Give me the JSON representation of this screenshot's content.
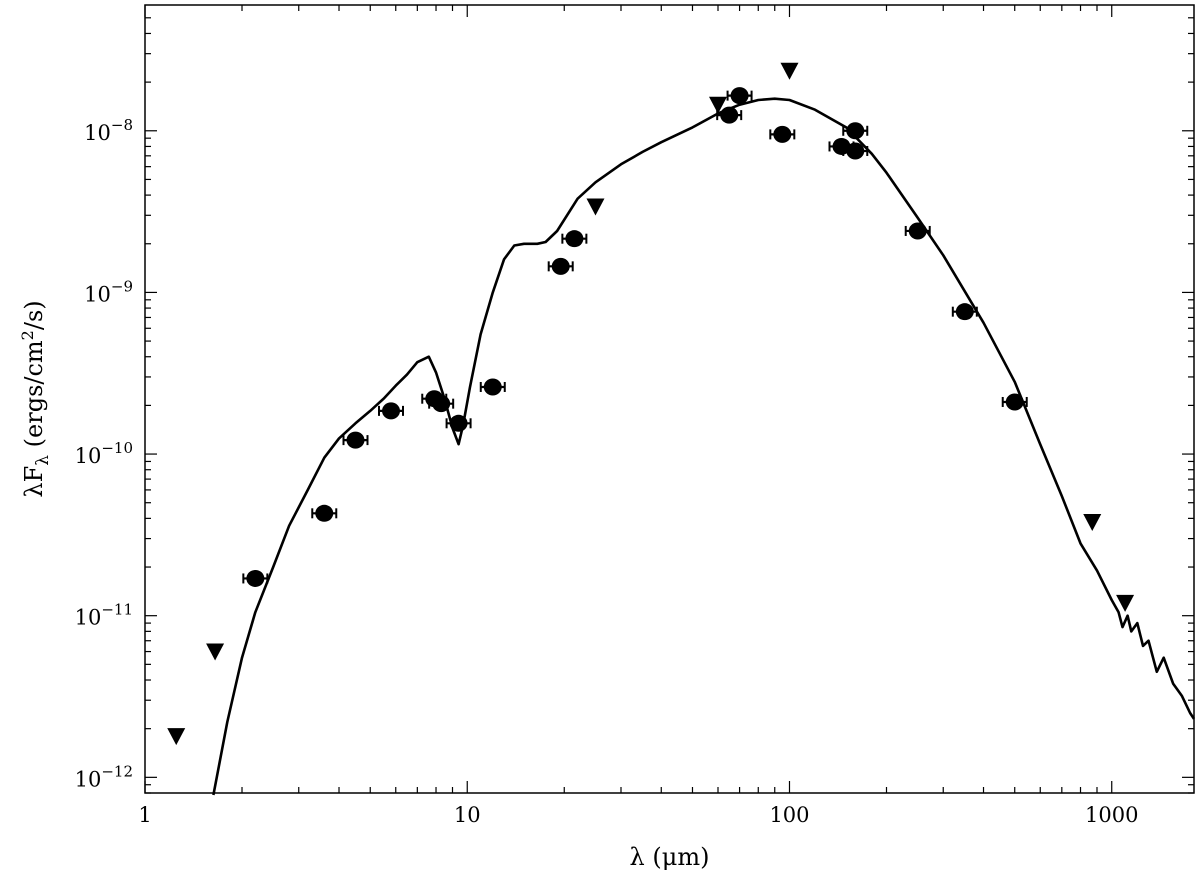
{
  "chart_data": {
    "type": "scatter",
    "xlabel": "λ (μm)",
    "ylabel_main": "λF",
    "ylabel_sub": "λ",
    "ylabel_units_pre": "(ergs/cm",
    "ylabel_units_sup": "2",
    "ylabel_units_post": "/s)",
    "x_scale": "log",
    "y_scale": "log",
    "xlim": [
      1,
      1800
    ],
    "ylim": [
      8e-13,
      6e-08
    ],
    "grid": false,
    "x_ticks": [
      {
        "value": 1,
        "label": "1"
      },
      {
        "value": 10,
        "label": "10"
      },
      {
        "value": 100,
        "label": "100"
      },
      {
        "value": 1000,
        "label": "1000"
      }
    ],
    "y_ticks": [
      {
        "value": 1e-12,
        "base": "10",
        "exp": "−12"
      },
      {
        "value": 1e-11,
        "base": "10",
        "exp": "−11"
      },
      {
        "value": 1e-10,
        "base": "10",
        "exp": "−10"
      },
      {
        "value": 1e-09,
        "base": "10",
        "exp": "−9"
      },
      {
        "value": 1e-08,
        "base": "10",
        "exp": "−8"
      }
    ],
    "series": [
      {
        "kind": "line",
        "color": "#000000",
        "x": [
          1.63,
          1.8,
          2.0,
          2.2,
          2.5,
          2.8,
          3.2,
          3.6,
          4.0,
          4.5,
          5.0,
          5.5,
          6.0,
          6.5,
          7.0,
          7.6,
          8.0,
          8.5,
          9.0,
          9.4,
          9.7,
          10.2,
          11,
          12,
          13,
          14,
          15,
          16.5,
          17.5,
          19,
          22,
          25,
          30,
          35,
          40,
          50,
          60,
          70,
          80,
          90,
          100,
          120,
          150,
          180,
          200,
          250,
          300,
          400,
          500,
          600,
          700,
          800,
          900,
          1000,
          1050,
          1080,
          1120,
          1150,
          1200,
          1250,
          1300,
          1380,
          1450,
          1550,
          1650,
          1750,
          1800
        ],
        "y": [
          7e-13,
          2.2e-12,
          5.5e-12,
          1.05e-11,
          2e-11,
          3.6e-11,
          6e-11,
          9.5e-11,
          1.25e-10,
          1.55e-10,
          1.85e-10,
          2.2e-10,
          2.65e-10,
          3.1e-10,
          3.7e-10,
          4e-10,
          3.2e-10,
          2.2e-10,
          1.45e-10,
          1.15e-10,
          1.5e-10,
          2.6e-10,
          5.5e-10,
          1e-09,
          1.6e-09,
          1.95e-09,
          2e-09,
          2e-09,
          2.05e-09,
          2.4e-09,
          3.8e-09,
          4.8e-09,
          6.2e-09,
          7.4e-09,
          8.5e-09,
          1.05e-08,
          1.28e-08,
          1.45e-08,
          1.55e-08,
          1.58e-08,
          1.55e-08,
          1.35e-08,
          1.05e-08,
          7.2e-09,
          5.5e-09,
          2.9e-09,
          1.7e-09,
          6.5e-10,
          2.8e-10,
          1.15e-10,
          5.5e-11,
          2.8e-11,
          1.9e-11,
          1.25e-11,
          1.05e-11,
          8.5e-12,
          1e-11,
          8e-12,
          9e-12,
          6.5e-12,
          7e-12,
          4.5e-12,
          5.5e-12,
          3.8e-12,
          3.2e-12,
          2.5e-12,
          2.3e-12
        ]
      },
      {
        "kind": "points",
        "marker": "circle",
        "color": "#000000",
        "x": [
          2.2,
          3.6,
          4.5,
          5.8,
          7.9,
          8.3,
          9.4,
          12,
          19.5,
          21.5,
          65,
          70,
          95,
          145,
          160,
          160,
          250,
          350,
          500
        ],
        "y": [
          1.7e-11,
          4.3e-11,
          1.22e-10,
          1.85e-10,
          2.2e-10,
          2.05e-10,
          1.55e-10,
          2.6e-10,
          1.45e-09,
          2.15e-09,
          1.25e-08,
          1.65e-08,
          9.5e-09,
          8e-09,
          1e-08,
          7.5e-09,
          2.4e-09,
          7.6e-10,
          2.1e-10
        ]
      },
      {
        "kind": "points",
        "marker": "triangle-down",
        "color": "#000000",
        "x": [
          1.25,
          1.65,
          25,
          60,
          100,
          870,
          1100
        ],
        "y": [
          1.8e-12,
          6e-12,
          3.4e-09,
          1.45e-08,
          2.35e-08,
          3.8e-11,
          1.2e-11
        ]
      }
    ]
  }
}
